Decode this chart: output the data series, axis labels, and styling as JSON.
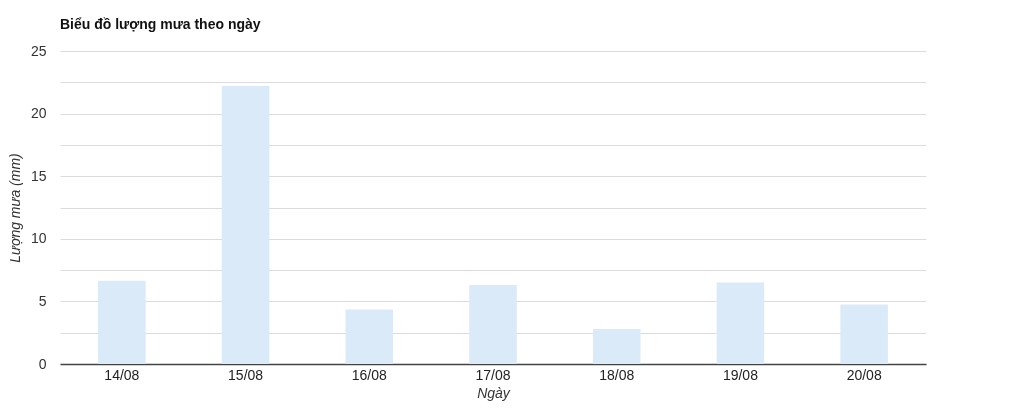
{
  "chart_data": {
    "type": "bar",
    "title": "Biểu đồ lượng mưa theo ngày",
    "xlabel": "Ngày",
    "ylabel": "Lượng mưa (mm)",
    "categories": [
      "14/08",
      "15/08",
      "16/08",
      "17/08",
      "18/08",
      "19/08",
      "20/08"
    ],
    "values": [
      6.65,
      22.2,
      4.35,
      6.3,
      2.8,
      6.5,
      4.75
    ],
    "color": "#dbeaf8",
    "ylim": [
      0,
      25
    ],
    "yticks": [
      0,
      {
        "value": 2.5,
        "label": null
      },
      5,
      {
        "value": 7.5,
        "label": null
      },
      10,
      {
        "value": 12.5,
        "label": null
      },
      15,
      {
        "value": 17.5,
        "label": null
      },
      20,
      {
        "value": 22.5,
        "label": null
      },
      25
    ],
    "grid": "y"
  }
}
